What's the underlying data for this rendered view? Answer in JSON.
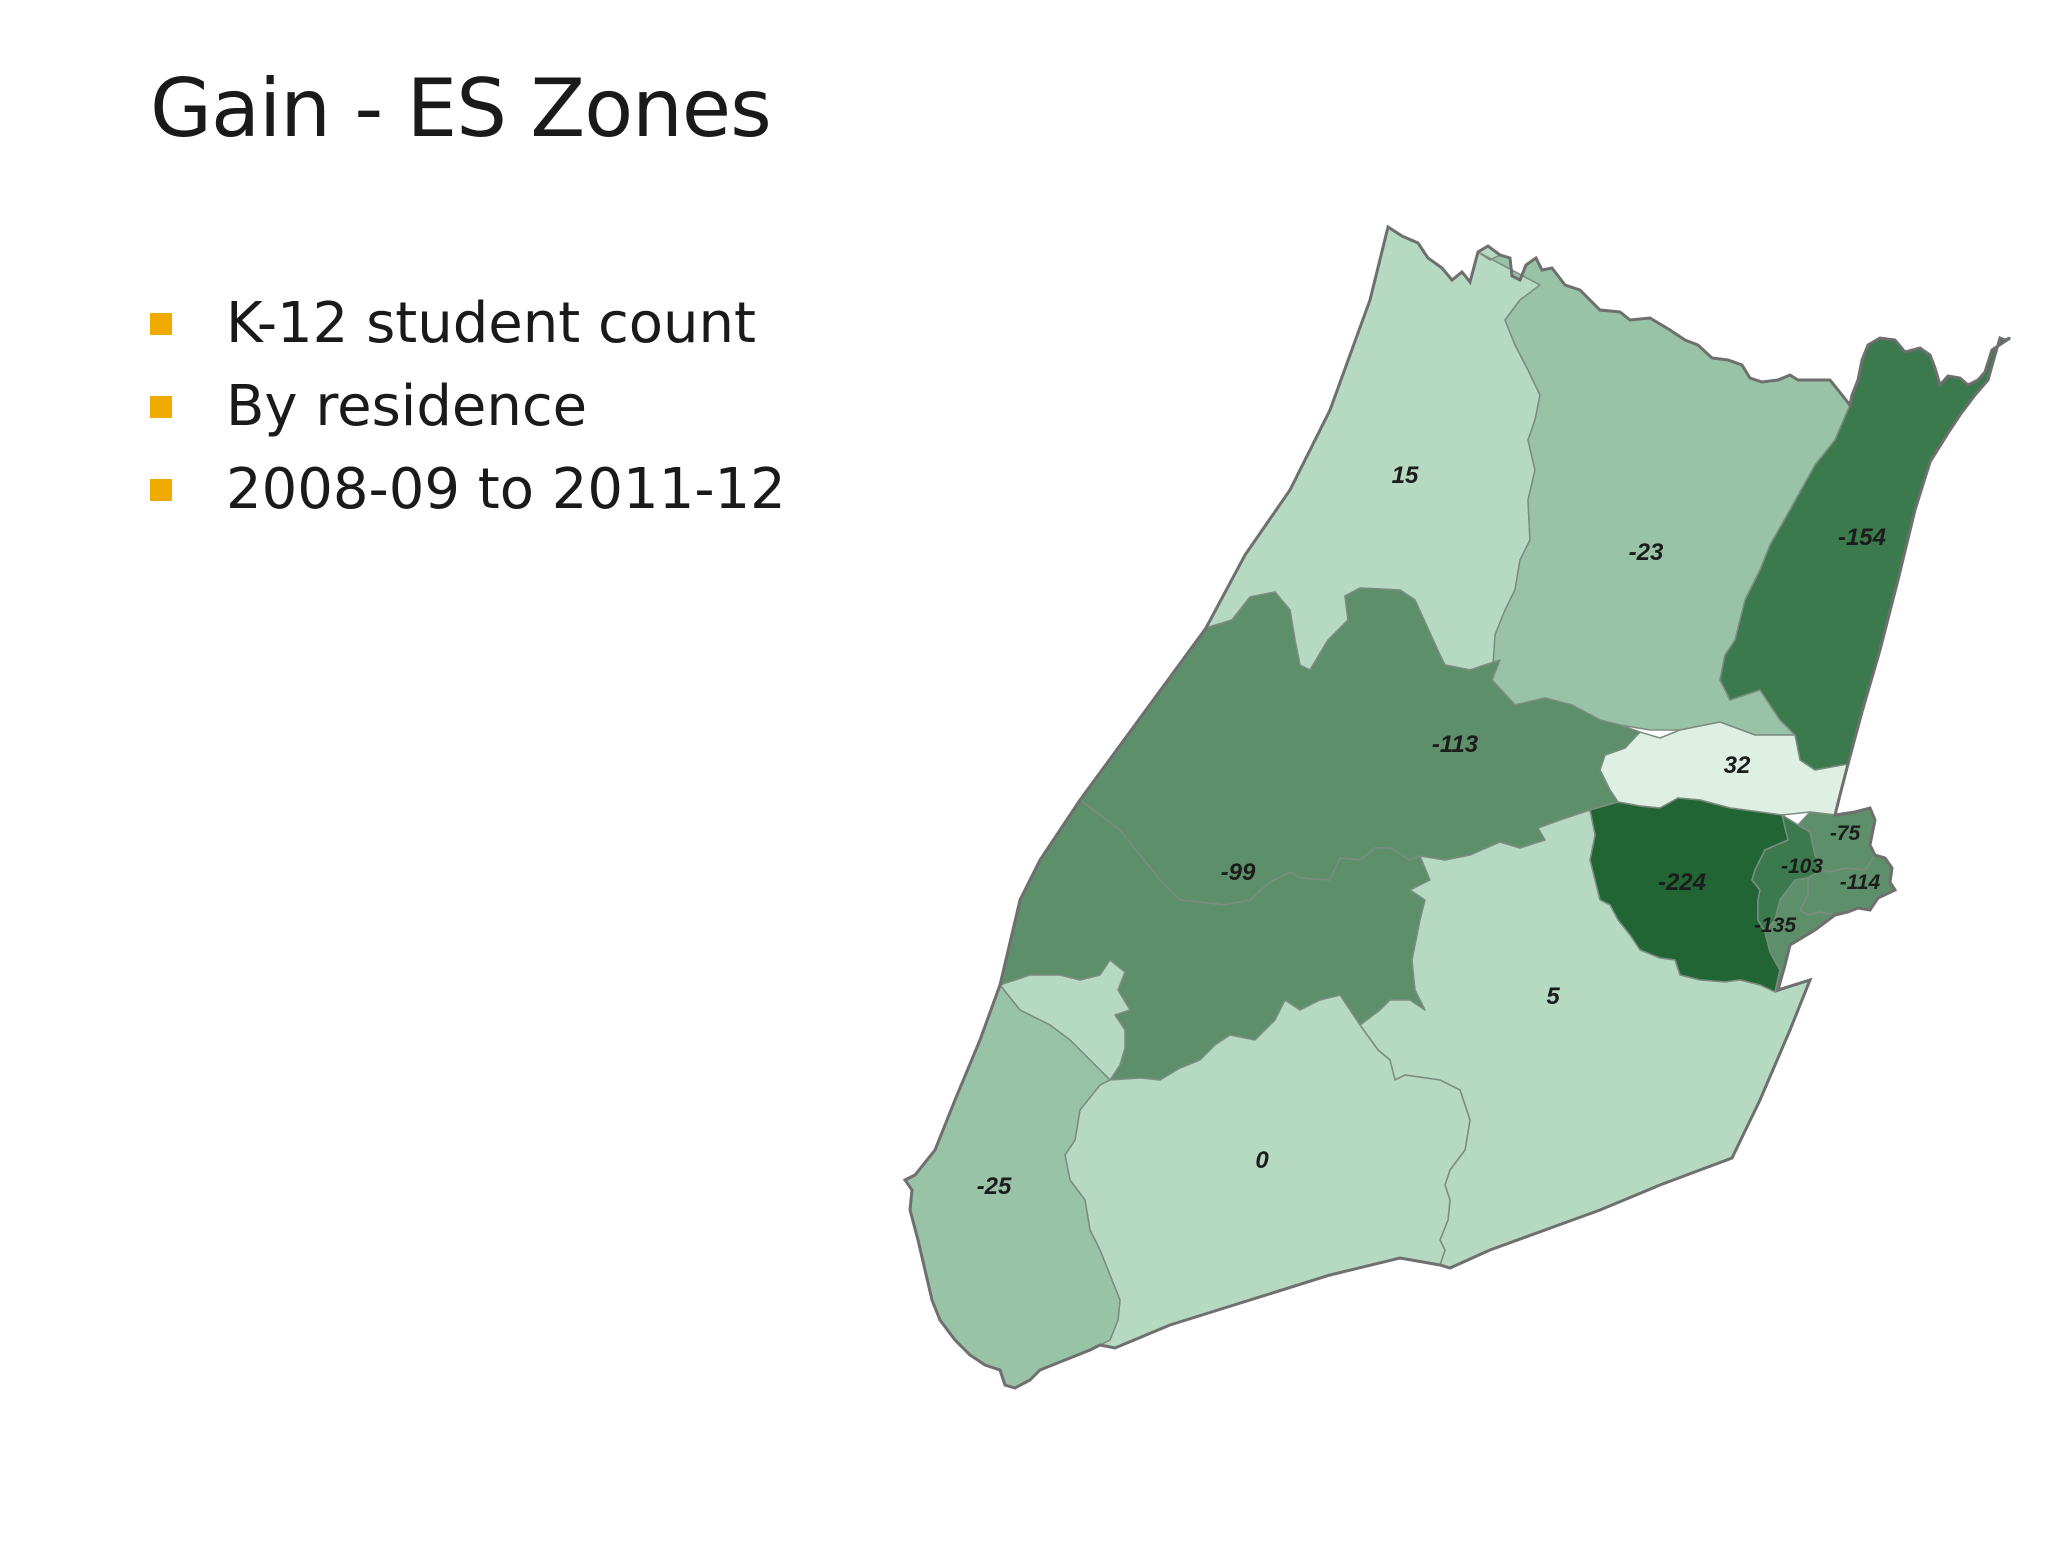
{
  "slide": {
    "title": "Gain - ES Zones",
    "bullets": [
      "K-12 student count",
      "By residence",
      "2008-09 to 2011-12"
    ],
    "bullet_color": "#f0ab00"
  },
  "map": {
    "zone_values": [
      "15",
      "-23",
      "-154",
      "-113",
      "32",
      "-99",
      "-224",
      "-75",
      "-103",
      "-114",
      "-135",
      "5",
      "0",
      "-25"
    ],
    "colors": {
      "lightest": "#ddf0e3",
      "light": "#b6d9c2",
      "medium_light": "#98c3a6",
      "medium": "#5c8f6a",
      "dark": "#3b7a4c",
      "darkest": "#226534",
      "border": "#6f6f6f"
    }
  }
}
